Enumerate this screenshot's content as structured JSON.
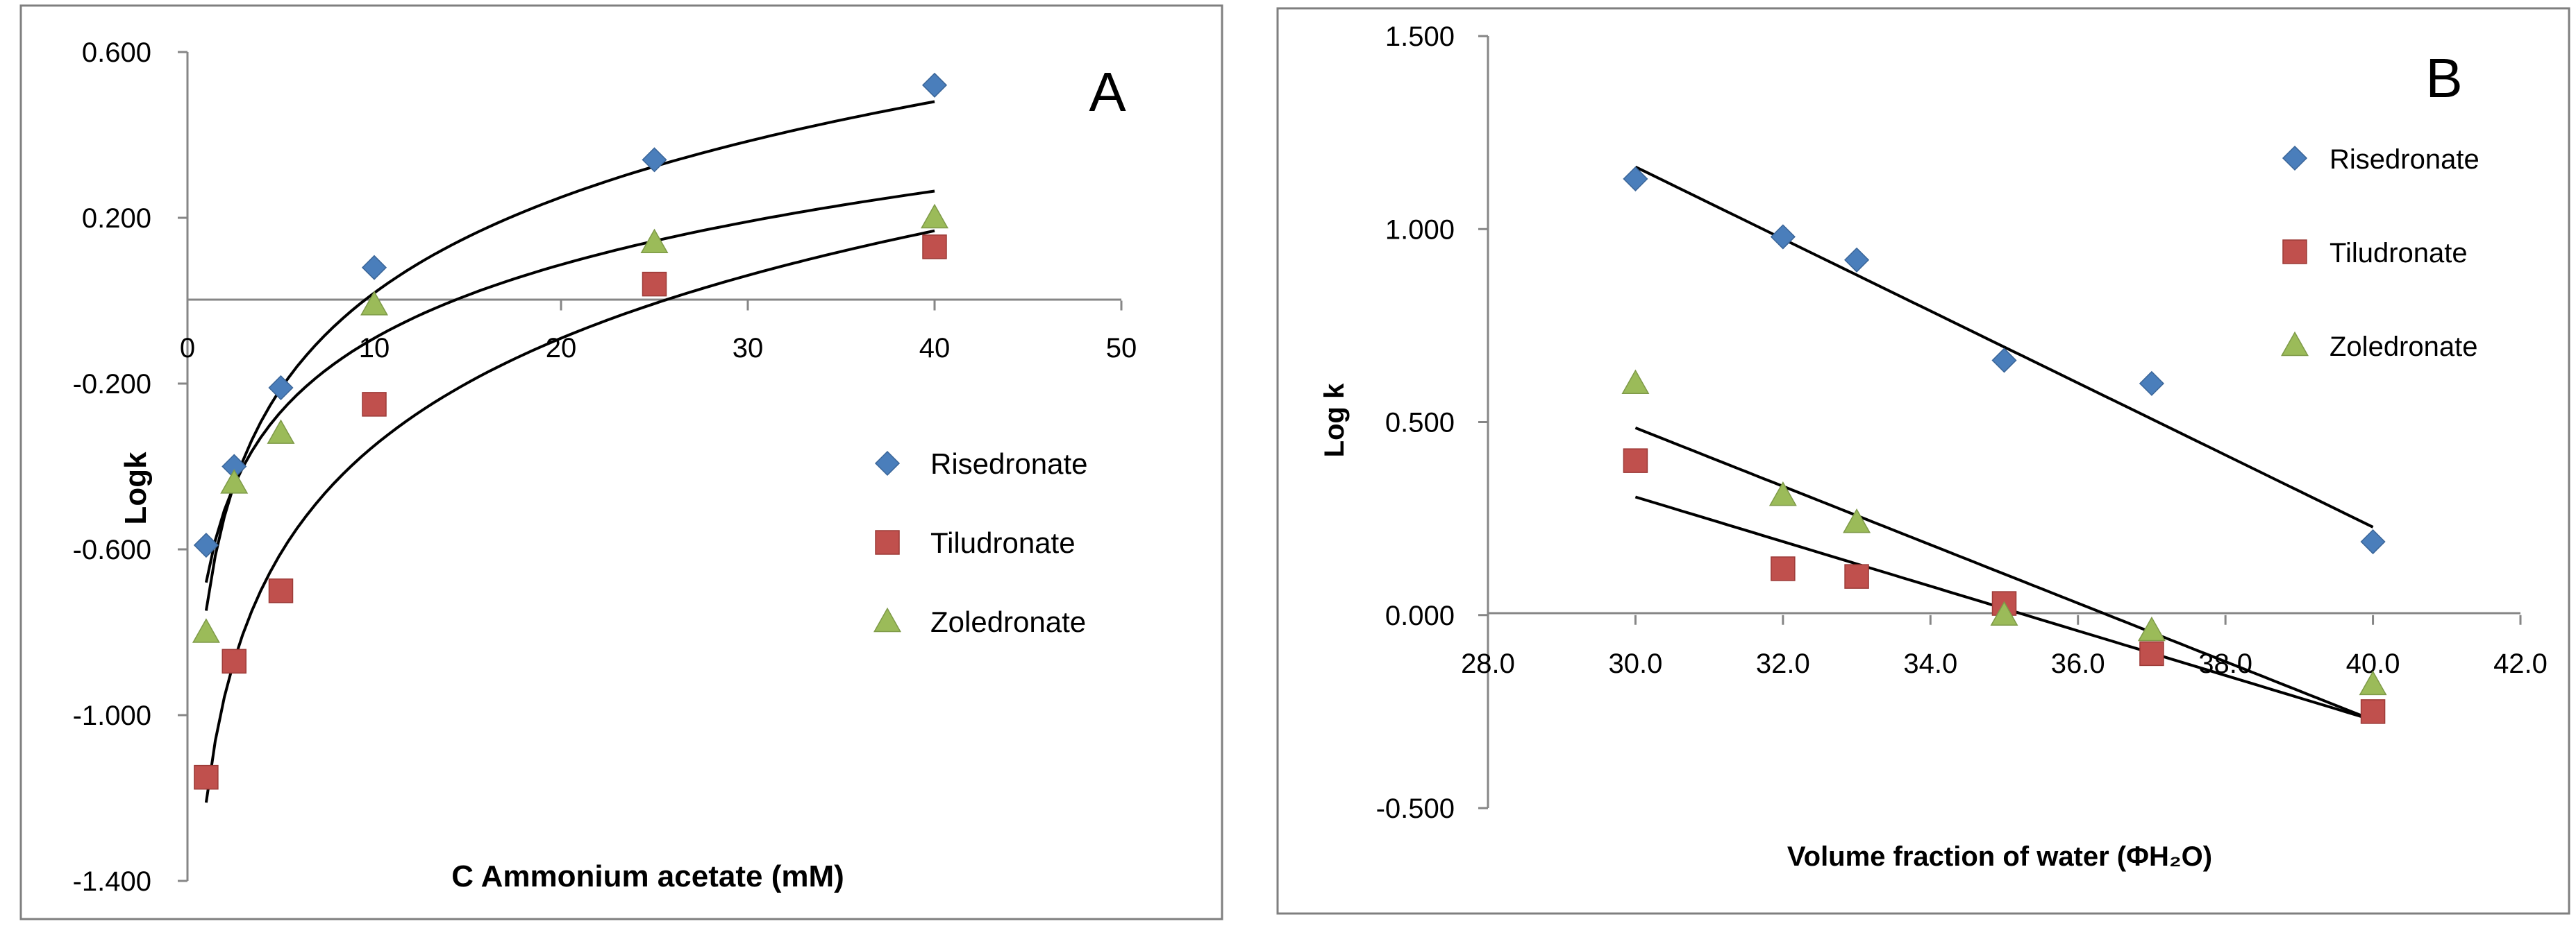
{
  "chart_data": [
    {
      "panel_label": "A",
      "type": "scatter",
      "title": "",
      "xlabel": "C Ammonium acetate (mM)",
      "ylabel": "Logk",
      "xlim": [
        0,
        50
      ],
      "ylim": [
        -1.4,
        0.6
      ],
      "x_ticks": [
        "0",
        "10",
        "20",
        "30",
        "40",
        "50"
      ],
      "y_ticks": [
        "0.600",
        "0.200",
        "-0.200",
        "-0.600",
        "-1.000",
        "-1.400"
      ],
      "legend_position": "right-middle",
      "series": [
        {
          "name": "Risedronate",
          "marker": "diamond",
          "color": "#4A7EBB",
          "x": [
            1,
            2.5,
            5,
            10,
            25,
            40
          ],
          "y": [
            -0.59,
            -0.4,
            -0.21,
            0.08,
            0.34,
            0.52
          ],
          "fit": {
            "type": "log",
            "a": -0.748,
            "b": 0.333
          }
        },
        {
          "name": "Tiludronate",
          "marker": "square",
          "color": "#C0504D",
          "x": [
            1,
            2.5,
            5,
            10,
            25,
            40
          ],
          "y": [
            -1.15,
            -0.87,
            -0.7,
            -0.25,
            0.04,
            0.13
          ],
          "fit": {
            "type": "log",
            "a": -1.211,
            "b": 0.374
          }
        },
        {
          "name": "Zoledronate",
          "marker": "triangle",
          "color": "#9BBB59",
          "x": [
            1,
            2.5,
            5,
            10,
            25,
            40
          ],
          "y": [
            -0.8,
            -0.44,
            -0.32,
            -0.01,
            0.14,
            0.2
          ],
          "fit": {
            "type": "log",
            "a": -0.68,
            "b": 0.256
          }
        }
      ]
    },
    {
      "panel_label": "B",
      "type": "scatter",
      "title": "",
      "xlabel": "Volume fraction of water (ΦH₂O)",
      "ylabel": "Log k",
      "xlim": [
        28,
        42
      ],
      "ylim": [
        -0.5,
        1.5
      ],
      "x_ticks": [
        "28.0",
        "30.0",
        "32.0",
        "34.0",
        "36.0",
        "38.0",
        "40.0",
        "42.0"
      ],
      "y_ticks": [
        "1.500",
        "1.000",
        "0.500",
        "0.000",
        "-0.500"
      ],
      "legend_position": "top-right",
      "series": [
        {
          "name": "Risedronate",
          "marker": "diamond",
          "color": "#4A7EBB",
          "x": [
            30,
            32,
            33,
            35,
            37,
            40
          ],
          "y": [
            1.13,
            0.98,
            0.92,
            0.66,
            0.6,
            0.19
          ],
          "fit": {
            "type": "linear",
            "slope": -0.0933,
            "intercept": 3.96
          }
        },
        {
          "name": "Tiludronate",
          "marker": "square",
          "color": "#C0504D",
          "x": [
            30,
            32,
            33,
            35,
            37,
            40
          ],
          "y": [
            0.4,
            0.12,
            0.1,
            0.03,
            -0.1,
            -0.25
          ],
          "fit": {
            "type": "linear",
            "slope": -0.0578,
            "intercept": 2.04
          }
        },
        {
          "name": "Zoledronate",
          "marker": "triangle",
          "color": "#9BBB59",
          "x": [
            30,
            32,
            33,
            35,
            37,
            40
          ],
          "y": [
            0.6,
            0.31,
            0.24,
            0.0,
            -0.04,
            -0.18
          ],
          "fit": {
            "type": "linear",
            "slope": -0.0757,
            "intercept": 2.756
          }
        }
      ]
    }
  ]
}
